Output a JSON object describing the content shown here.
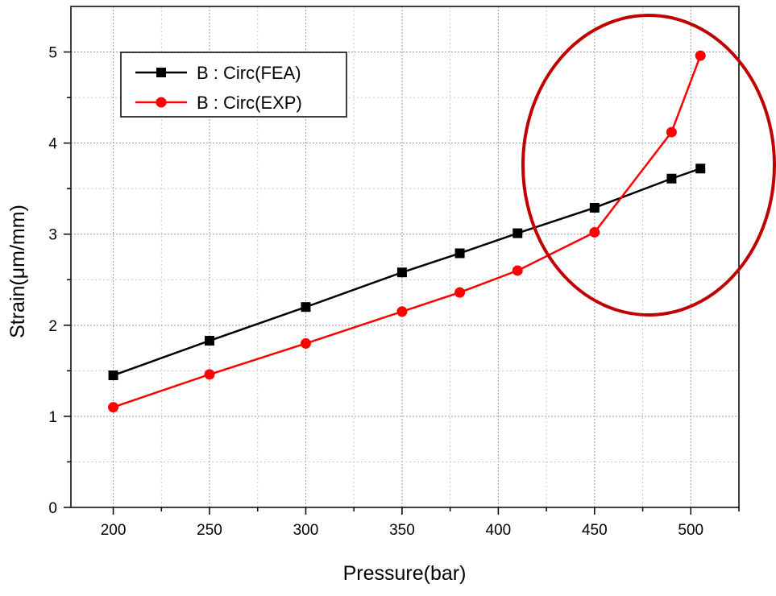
{
  "chart_data": {
    "type": "line",
    "xlabel": "Pressure(bar)",
    "ylabel": "Strain(μm/mm)",
    "xlim": [
      178,
      525
    ],
    "ylim": [
      0,
      5.5
    ],
    "xticks": [
      200,
      250,
      300,
      350,
      400,
      450,
      500
    ],
    "yticks": [
      0,
      1,
      2,
      3,
      4,
      5
    ],
    "grid": true,
    "legend_position": "top-left",
    "series": [
      {
        "name": "B : Circ(FEA)",
        "color": "#000000",
        "marker": "square",
        "x": [
          200,
          250,
          300,
          350,
          380,
          410,
          450,
          490,
          505
        ],
        "y": [
          1.45,
          1.83,
          2.2,
          2.58,
          2.79,
          3.01,
          3.29,
          3.61,
          3.72
        ]
      },
      {
        "name": "B : Circ(EXP)",
        "color": "#ff0000",
        "marker": "circle",
        "x": [
          200,
          250,
          300,
          350,
          380,
          410,
          450,
          490,
          505
        ],
        "y": [
          1.1,
          1.46,
          1.8,
          2.15,
          2.36,
          2.6,
          3.02,
          4.12,
          4.96
        ]
      }
    ],
    "annotation": {
      "shape": "ellipse",
      "color": "#c00000"
    }
  }
}
